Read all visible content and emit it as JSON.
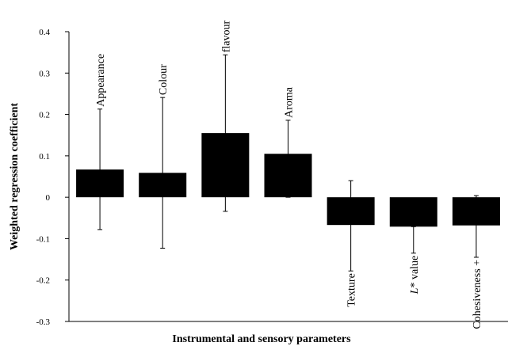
{
  "chart_data": {
    "type": "bar",
    "xlabel": "Instrumental and sensory parameters",
    "ylabel": "Weighted regression coefficient",
    "ylim": [
      -0.3,
      0.4
    ],
    "yticks": [
      -0.3,
      -0.2,
      -0.1,
      0,
      0.1,
      0.2,
      0.3,
      0.4
    ],
    "ytick_labels": [
      "-0.3",
      "-0.2",
      "-0.1",
      "0",
      "0.1",
      "0.2",
      "0.3",
      "0.4"
    ],
    "categories": [
      "Appearance",
      "Colour",
      "flavour",
      "Aroma",
      "Texture",
      "L* value",
      "Cohesiveness +"
    ],
    "values": [
      0.067,
      0.059,
      0.155,
      0.105,
      -0.067,
      -0.071,
      -0.068
    ],
    "error_low": [
      -0.078,
      -0.123,
      -0.034,
      0.0,
      -0.178,
      -0.135,
      -0.145
    ],
    "error_high": [
      0.213,
      0.241,
      0.344,
      0.186,
      0.04,
      -0.071,
      0.004
    ],
    "grid": false,
    "legend": "none",
    "bar_color": "#000000"
  }
}
